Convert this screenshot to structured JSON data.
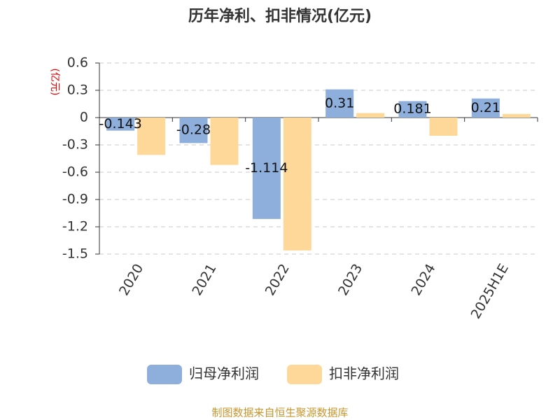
{
  "chart_data": {
    "type": "bar",
    "title": "历年净利、扣非情况(亿元)",
    "y_label": "(亿元)",
    "categories": [
      "2020",
      "2021",
      "2022",
      "2023",
      "2024",
      "2025H1E"
    ],
    "series": [
      {
        "name": "归母净利润",
        "color": "#8eaedb",
        "values": [
          -0.143,
          -0.28,
          -1.114,
          0.31,
          0.181,
          0.21
        ],
        "show_labels": true
      },
      {
        "name": "扣非净利润",
        "color": "#fdd898",
        "values": [
          -0.41,
          -0.52,
          -1.46,
          0.05,
          -0.2,
          0.04
        ],
        "show_labels": false
      }
    ],
    "ylim": [
      -1.5,
      0.6
    ],
    "yticks": [
      0.6,
      0.3,
      0,
      -0.3,
      -0.6,
      -0.9,
      -1.2,
      -1.5
    ],
    "grid": true,
    "source": "制图数据来自恒生聚源数据库"
  }
}
